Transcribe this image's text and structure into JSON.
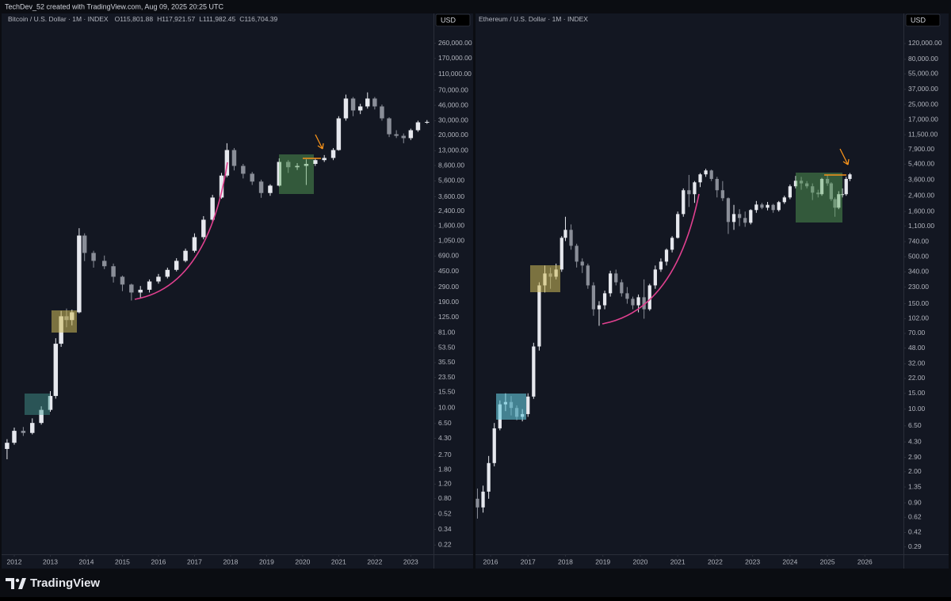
{
  "header": "TechDev_52 created with TradingView.com, Aug 09, 2025 20:25 UTC",
  "footer": "TradingView",
  "chart_data": [
    {
      "type": "candlestick",
      "title": "Bitcoin / U.S. Dollar · 1M · INDEX",
      "legend_values": [
        "O115,801.88",
        "H117,921.57",
        "L111,982.45",
        "C116,704.39"
      ],
      "currency": "USD",
      "log_scale": true,
      "up_color": "#e6e8ee",
      "down_color": "#8a8e98",
      "xlim": [
        2011.78,
        2023.63
      ],
      "xticks": [
        2012,
        2013,
        2014,
        2015,
        2016,
        2017,
        2018,
        2019,
        2020,
        2021,
        2022,
        2023
      ],
      "ylim": [
        0.17,
        400000
      ],
      "yticks": [
        {
          "value": 260000,
          "label": "260,000.00"
        },
        {
          "value": 170000,
          "label": "170,000.00"
        },
        {
          "value": 110000,
          "label": "110,000.00"
        },
        {
          "value": 70000,
          "label": "70,000.00"
        },
        {
          "value": 46000,
          "label": "46,000.00"
        },
        {
          "value": 30000,
          "label": "30,000.00"
        },
        {
          "value": 20000,
          "label": "20,000.00"
        },
        {
          "value": 13000,
          "label": "13,000.00"
        },
        {
          "value": 8600,
          "label": "8,600.00"
        },
        {
          "value": 5600,
          "label": "5,600.00"
        },
        {
          "value": 3600,
          "label": "3,600.00"
        },
        {
          "value": 2400,
          "label": "2,400.00"
        },
        {
          "value": 1600,
          "label": "1,600.00"
        },
        {
          "value": 1050,
          "label": "1,050.00"
        },
        {
          "value": 690,
          "label": "690.00"
        },
        {
          "value": 450,
          "label": "450.00"
        },
        {
          "value": 290,
          "label": "290.00"
        },
        {
          "value": 190,
          "label": "190.00"
        },
        {
          "value": 125,
          "label": "125.00"
        },
        {
          "value": 81,
          "label": "81.00"
        },
        {
          "value": 53.5,
          "label": "53.50"
        },
        {
          "value": 35.5,
          "label": "35.50"
        },
        {
          "value": 23.5,
          "label": "23.50"
        },
        {
          "value": 15.5,
          "label": "15.50"
        },
        {
          "value": 10,
          "label": "10.00"
        },
        {
          "value": 6.5,
          "label": "6.50"
        },
        {
          "value": 4.3,
          "label": "4.30"
        },
        {
          "value": 2.7,
          "label": "2.70"
        },
        {
          "value": 1.8,
          "label": "1.80"
        },
        {
          "value": 1.2,
          "label": "1.20"
        },
        {
          "value": 0.8,
          "label": "0.80"
        },
        {
          "value": 0.52,
          "label": "0.52"
        },
        {
          "value": 0.34,
          "label": "0.34"
        },
        {
          "value": 0.22,
          "label": "0.22"
        }
      ],
      "x": [
        2011.8,
        2012.0,
        2012.25,
        2012.5,
        2012.75,
        2013.0,
        2013.15,
        2013.3,
        2013.45,
        2013.6,
        2013.8,
        2013.95,
        2014.2,
        2014.5,
        2014.75,
        2015.0,
        2015.25,
        2015.5,
        2015.75,
        2016.0,
        2016.25,
        2016.5,
        2016.75,
        2017.0,
        2017.25,
        2017.5,
        2017.75,
        2017.9,
        2018.1,
        2018.35,
        2018.6,
        2018.85,
        2019.1,
        2019.35,
        2019.6,
        2019.85,
        2020.1,
        2020.35,
        2020.6,
        2020.85,
        2021.0,
        2021.2,
        2021.4,
        2021.6,
        2021.8,
        2022.0,
        2022.2,
        2022.4,
        2022.6,
        2022.8,
        2023.0,
        2023.2,
        2023.45
      ],
      "open": [
        3.2,
        3.8,
        5.3,
        5.0,
        6.6,
        9.5,
        14,
        60,
        129,
        116,
        144,
        1222,
        753,
        604,
        520,
        388,
        312,
        250,
        270,
        340,
        388,
        470,
        604,
        800,
        1169,
        1900,
        3524,
        6500,
        13240,
        8510,
        6840,
        5500,
        4000,
        4910,
        9510,
        8200,
        8510,
        9000,
        10000,
        10620,
        13240,
        32000,
        55600,
        39900,
        44600,
        55600,
        44600,
        32000,
        20560,
        19680,
        18450,
        23000,
        28640
      ],
      "close": [
        3.8,
        5.3,
        5.0,
        6.6,
        9.5,
        14,
        60,
        129,
        116,
        144,
        1222,
        753,
        604,
        520,
        388,
        312,
        250,
        270,
        340,
        388,
        470,
        604,
        800,
        1169,
        1900,
        3524,
        6500,
        13240,
        8510,
        6840,
        5500,
        4000,
        4910,
        9510,
        8200,
        8510,
        9000,
        10000,
        10620,
        13240,
        32000,
        55600,
        39900,
        44600,
        55600,
        44600,
        32000,
        20560,
        19680,
        18450,
        23000,
        28640,
        29000
      ],
      "high": [
        4.2,
        5.8,
        5.9,
        7.5,
        10.5,
        16,
        70,
        150,
        160,
        155,
        1500,
        1300,
        800,
        700,
        560,
        400,
        320,
        300,
        360,
        420,
        500,
        650,
        850,
        1300,
        2100,
        3800,
        7000,
        16000,
        14000,
        9000,
        7200,
        5800,
        5100,
        10500,
        10000,
        9200,
        10200,
        10500,
        11500,
        14000,
        34000,
        62000,
        58000,
        48000,
        66000,
        58000,
        47000,
        33000,
        23000,
        21000,
        24000,
        30000,
        30500
      ],
      "low": [
        2.4,
        3.6,
        4.6,
        4.8,
        6.3,
        9,
        13,
        55,
        95,
        100,
        140,
        600,
        500,
        480,
        330,
        260,
        200,
        215,
        250,
        320,
        370,
        450,
        580,
        760,
        1100,
        1800,
        3400,
        6200,
        7500,
        6000,
        5000,
        3500,
        3700,
        4800,
        7000,
        7600,
        5000,
        8500,
        9500,
        10000,
        13000,
        30000,
        34000,
        36000,
        42000,
        41000,
        30000,
        19000,
        18500,
        16000,
        17500,
        22000,
        27500
      ]
    },
    {
      "type": "candlestick",
      "title": "Ethereum / U.S. Dollar · 1M · INDEX",
      "currency": "USD",
      "log_scale": true,
      "up_color": "#e6e8ee",
      "down_color": "#8a8e98",
      "xlim": [
        2015.64,
        2027.03
      ],
      "xticks": [
        2016,
        2017,
        2018,
        2019,
        2020,
        2021,
        2022,
        2023,
        2024,
        2025,
        2026
      ],
      "ylim": [
        0.24,
        180000
      ],
      "yticks": [
        {
          "value": 120000,
          "label": "120,000.00"
        },
        {
          "value": 80000,
          "label": "80,000.00"
        },
        {
          "value": 55000,
          "label": "55,000.00"
        },
        {
          "value": 37000,
          "label": "37,000.00"
        },
        {
          "value": 25000,
          "label": "25,000.00"
        },
        {
          "value": 17000,
          "label": "17,000.00"
        },
        {
          "value": 11500,
          "label": "11,500.00"
        },
        {
          "value": 7900,
          "label": "7,900.00"
        },
        {
          "value": 5400,
          "label": "5,400.00"
        },
        {
          "value": 3600,
          "label": "3,600.00"
        },
        {
          "value": 2400,
          "label": "2,400.00"
        },
        {
          "value": 1600,
          "label": "1,600.00"
        },
        {
          "value": 1100,
          "label": "1,100.00"
        },
        {
          "value": 740,
          "label": "740.00"
        },
        {
          "value": 500,
          "label": "500.00"
        },
        {
          "value": 340,
          "label": "340.00"
        },
        {
          "value": 230,
          "label": "230.00"
        },
        {
          "value": 150,
          "label": "150.00"
        },
        {
          "value": 102,
          "label": "102.00"
        },
        {
          "value": 70,
          "label": "70.00"
        },
        {
          "value": 48,
          "label": "48.00"
        },
        {
          "value": 32,
          "label": "32.00"
        },
        {
          "value": 22,
          "label": "22.00"
        },
        {
          "value": 15,
          "label": "15.00"
        },
        {
          "value": 10,
          "label": "10.00"
        },
        {
          "value": 6.5,
          "label": "6.50"
        },
        {
          "value": 4.3,
          "label": "4.30"
        },
        {
          "value": 2.9,
          "label": "2.90"
        },
        {
          "value": 2,
          "label": "2.00"
        },
        {
          "value": 1.35,
          "label": "1.35"
        },
        {
          "value": 0.9,
          "label": "0.90"
        },
        {
          "value": 0.62,
          "label": "0.62"
        },
        {
          "value": 0.42,
          "label": "0.42"
        },
        {
          "value": 0.29,
          "label": "0.29"
        }
      ],
      "x": [
        2015.65,
        2015.8,
        2015.95,
        2016.1,
        2016.25,
        2016.4,
        2016.55,
        2016.7,
        2016.85,
        2017.0,
        2017.15,
        2017.3,
        2017.45,
        2017.6,
        2017.75,
        2017.9,
        2018.0,
        2018.15,
        2018.3,
        2018.45,
        2018.6,
        2018.75,
        2018.9,
        2019.05,
        2019.2,
        2019.35,
        2019.5,
        2019.65,
        2019.8,
        2019.95,
        2020.1,
        2020.25,
        2020.4,
        2020.55,
        2020.7,
        2020.85,
        2021.0,
        2021.15,
        2021.3,
        2021.45,
        2021.6,
        2021.75,
        2021.9,
        2022.05,
        2022.2,
        2022.35,
        2022.5,
        2022.65,
        2022.8,
        2022.95,
        2023.1,
        2023.25,
        2023.4,
        2023.55,
        2023.7,
        2023.85,
        2024.0,
        2024.15,
        2024.3,
        2024.45,
        2024.6,
        2024.75,
        2024.85,
        2025.0,
        2025.1,
        2025.2,
        2025.3,
        2025.4,
        2025.5,
        2025.6
      ],
      "open": [
        1.0,
        0.8,
        1.2,
        2.5,
        6.1,
        11.3,
        12.0,
        10.3,
        8.2,
        8.8,
        13.8,
        50,
        240,
        326,
        300,
        361,
        815,
        1000,
        664,
        442,
        400,
        240,
        130,
        144,
        196,
        326,
        260,
        196,
        170,
        144,
        177,
        130,
        240,
        361,
        442,
        600,
        815,
        1500,
        2767,
        2500,
        3390,
        4160,
        4600,
        3700,
        2767,
        2254,
        1224,
        1500,
        1356,
        1200,
        1663,
        1915,
        1766,
        1900,
        1663,
        2037,
        2300,
        3063,
        3530,
        3300,
        3063,
        2600,
        2500,
        3700,
        3300,
        2200,
        1766,
        2500,
        2500,
        3700
      ],
      "close": [
        0.8,
        1.2,
        2.5,
        6.1,
        11.3,
        12.0,
        10.3,
        8.2,
        8.8,
        13.8,
        50,
        240,
        326,
        300,
        361,
        815,
        1000,
        664,
        442,
        400,
        240,
        130,
        144,
        196,
        326,
        260,
        196,
        170,
        144,
        177,
        130,
        240,
        361,
        442,
        600,
        815,
        1500,
        2767,
        2500,
        3390,
        4160,
        4600,
        3700,
        2767,
        2254,
        1224,
        1500,
        1356,
        1200,
        1663,
        1915,
        1766,
        1900,
        1663,
        2037,
        2300,
        3063,
        3530,
        3300,
        3063,
        2600,
        2500,
        3700,
        3300,
        2200,
        1766,
        2500,
        2500,
        3700,
        4160
      ],
      "high": [
        1.3,
        1.4,
        3.0,
        7.0,
        12.5,
        15,
        14,
        11,
        10,
        15,
        55,
        260,
        400,
        380,
        420,
        850,
        1400,
        1150,
        700,
        480,
        420,
        260,
        160,
        210,
        350,
        360,
        280,
        230,
        180,
        190,
        280,
        250,
        400,
        480,
        620,
        850,
        1600,
        2900,
        4100,
        3500,
        4300,
        4800,
        4700,
        3900,
        3500,
        2300,
        1900,
        1700,
        1600,
        1700,
        2100,
        2000,
        2050,
        1950,
        2100,
        2400,
        3200,
        4000,
        3900,
        3500,
        3300,
        2800,
        3800,
        4100,
        3400,
        2300,
        2700,
        2900,
        3900,
        4300
      ],
      "low": [
        0.6,
        0.7,
        1.0,
        2.3,
        5.8,
        9.5,
        8.5,
        7.5,
        7.3,
        8.2,
        13,
        45,
        200,
        220,
        280,
        340,
        750,
        600,
        380,
        330,
        220,
        110,
        85,
        130,
        180,
        240,
        180,
        150,
        130,
        120,
        102,
        125,
        220,
        340,
        400,
        560,
        800,
        1400,
        1800,
        2000,
        3000,
        3900,
        3500,
        2300,
        2100,
        900,
        1000,
        1100,
        1080,
        1150,
        1550,
        1700,
        1650,
        1550,
        1600,
        1950,
        2200,
        2900,
        2800,
        2900,
        2150,
        2300,
        2400,
        3100,
        2100,
        1400,
        1700,
        2300,
        2400,
        3500
      ]
    }
  ]
}
